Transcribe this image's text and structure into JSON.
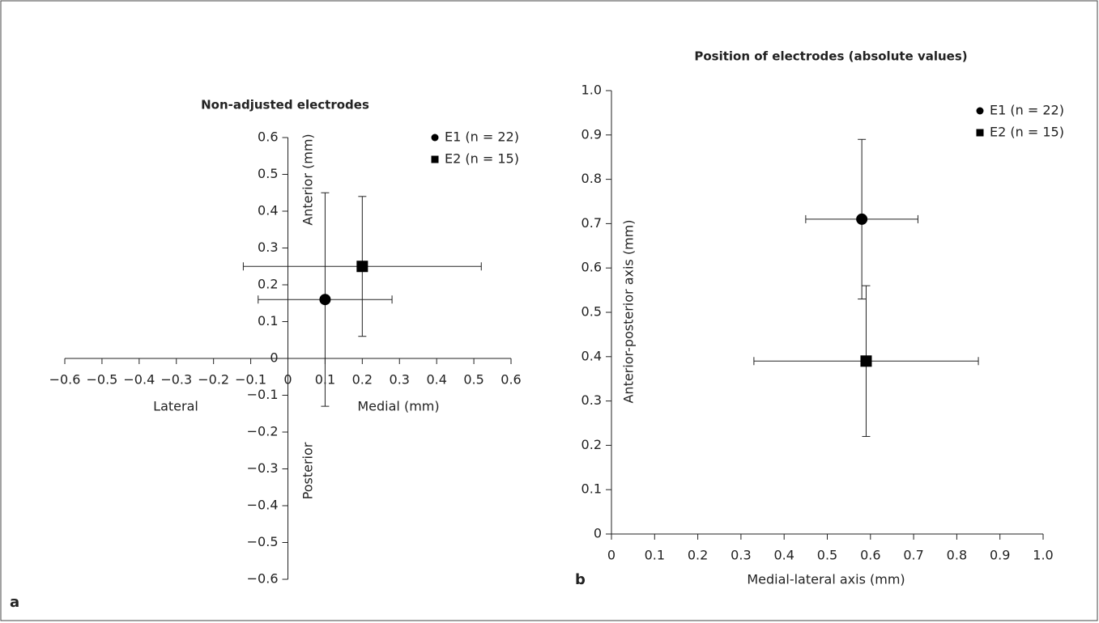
{
  "chart_data": [
    {
      "type": "scatter",
      "title": "Non-adjusted electrodes",
      "panel_label": "a",
      "x_label": "Medial (mm)",
      "x_label_negative": "Lateral",
      "y_label": "Anterior (mm)",
      "y_label_negative": "Posterior",
      "xlim": [
        -0.6,
        0.6
      ],
      "ylim": [
        -0.6,
        0.6
      ],
      "cross_axes": true,
      "xticks": [
        {
          "value": -0.6,
          "label": "−0.6"
        },
        {
          "value": -0.5,
          "label": "−0.5"
        },
        {
          "value": -0.4,
          "label": "−0.4"
        },
        {
          "value": -0.3,
          "label": "−0.3"
        },
        {
          "value": -0.2,
          "label": "−0.2"
        },
        {
          "value": -0.1,
          "label": "−0.1"
        },
        0,
        0.1,
        0.2,
        0.3,
        0.4,
        0.5,
        0.6
      ],
      "yticks": [
        {
          "value": -0.6,
          "label": "−0.6"
        },
        {
          "value": -0.5,
          "label": "−0.5"
        },
        {
          "value": -0.4,
          "label": "−0.4"
        },
        {
          "value": -0.3,
          "label": "−0.3"
        },
        {
          "value": -0.2,
          "label": "−0.2"
        },
        {
          "value": -0.1,
          "label": "−0.1"
        },
        0,
        0.1,
        0.2,
        0.3,
        0.4,
        0.5,
        0.6
      ],
      "series": [
        {
          "name": "E1 (n = 22)",
          "marker": "circle",
          "color": "#000000",
          "x": [
            0.1
          ],
          "values": [
            0.16
          ],
          "xerr": [
            0.18
          ],
          "yerr": [
            0.29
          ]
        },
        {
          "name": "E2 (n = 15)",
          "marker": "square",
          "color": "#000000",
          "x": [
            0.2
          ],
          "values": [
            0.25
          ],
          "xerr": [
            0.32
          ],
          "yerr": [
            0.19
          ]
        }
      ]
    },
    {
      "type": "scatter",
      "title": "Position of electrodes (absolute values)",
      "panel_label": "b",
      "x_label": "Medial-lateral axis (mm)",
      "y_label": "Anterior-posterior axis (mm)",
      "xlim": [
        0,
        1
      ],
      "ylim": [
        0,
        1
      ],
      "cross_axes": false,
      "xticks": [
        0,
        0.1,
        0.2,
        0.3,
        0.4,
        0.5,
        0.6,
        0.7,
        0.8,
        0.9,
        {
          "value": 1,
          "label": "1.0"
        }
      ],
      "yticks": [
        0,
        0.1,
        0.2,
        0.3,
        0.4,
        0.5,
        0.6,
        0.7,
        0.8,
        0.9,
        {
          "value": 1,
          "label": "1.0"
        }
      ],
      "series": [
        {
          "name": "E1 (n = 22)",
          "marker": "circle",
          "color": "#000000",
          "x": [
            0.58
          ],
          "values": [
            0.71
          ],
          "xerr": [
            0.13
          ],
          "yerr": [
            0.18
          ]
        },
        {
          "name": "E2 (n = 15)",
          "marker": "square",
          "color": "#000000",
          "x": [
            0.59
          ],
          "values": [
            0.39
          ],
          "xerr": [
            0.26
          ],
          "yerr": [
            0.17
          ]
        }
      ]
    }
  ]
}
